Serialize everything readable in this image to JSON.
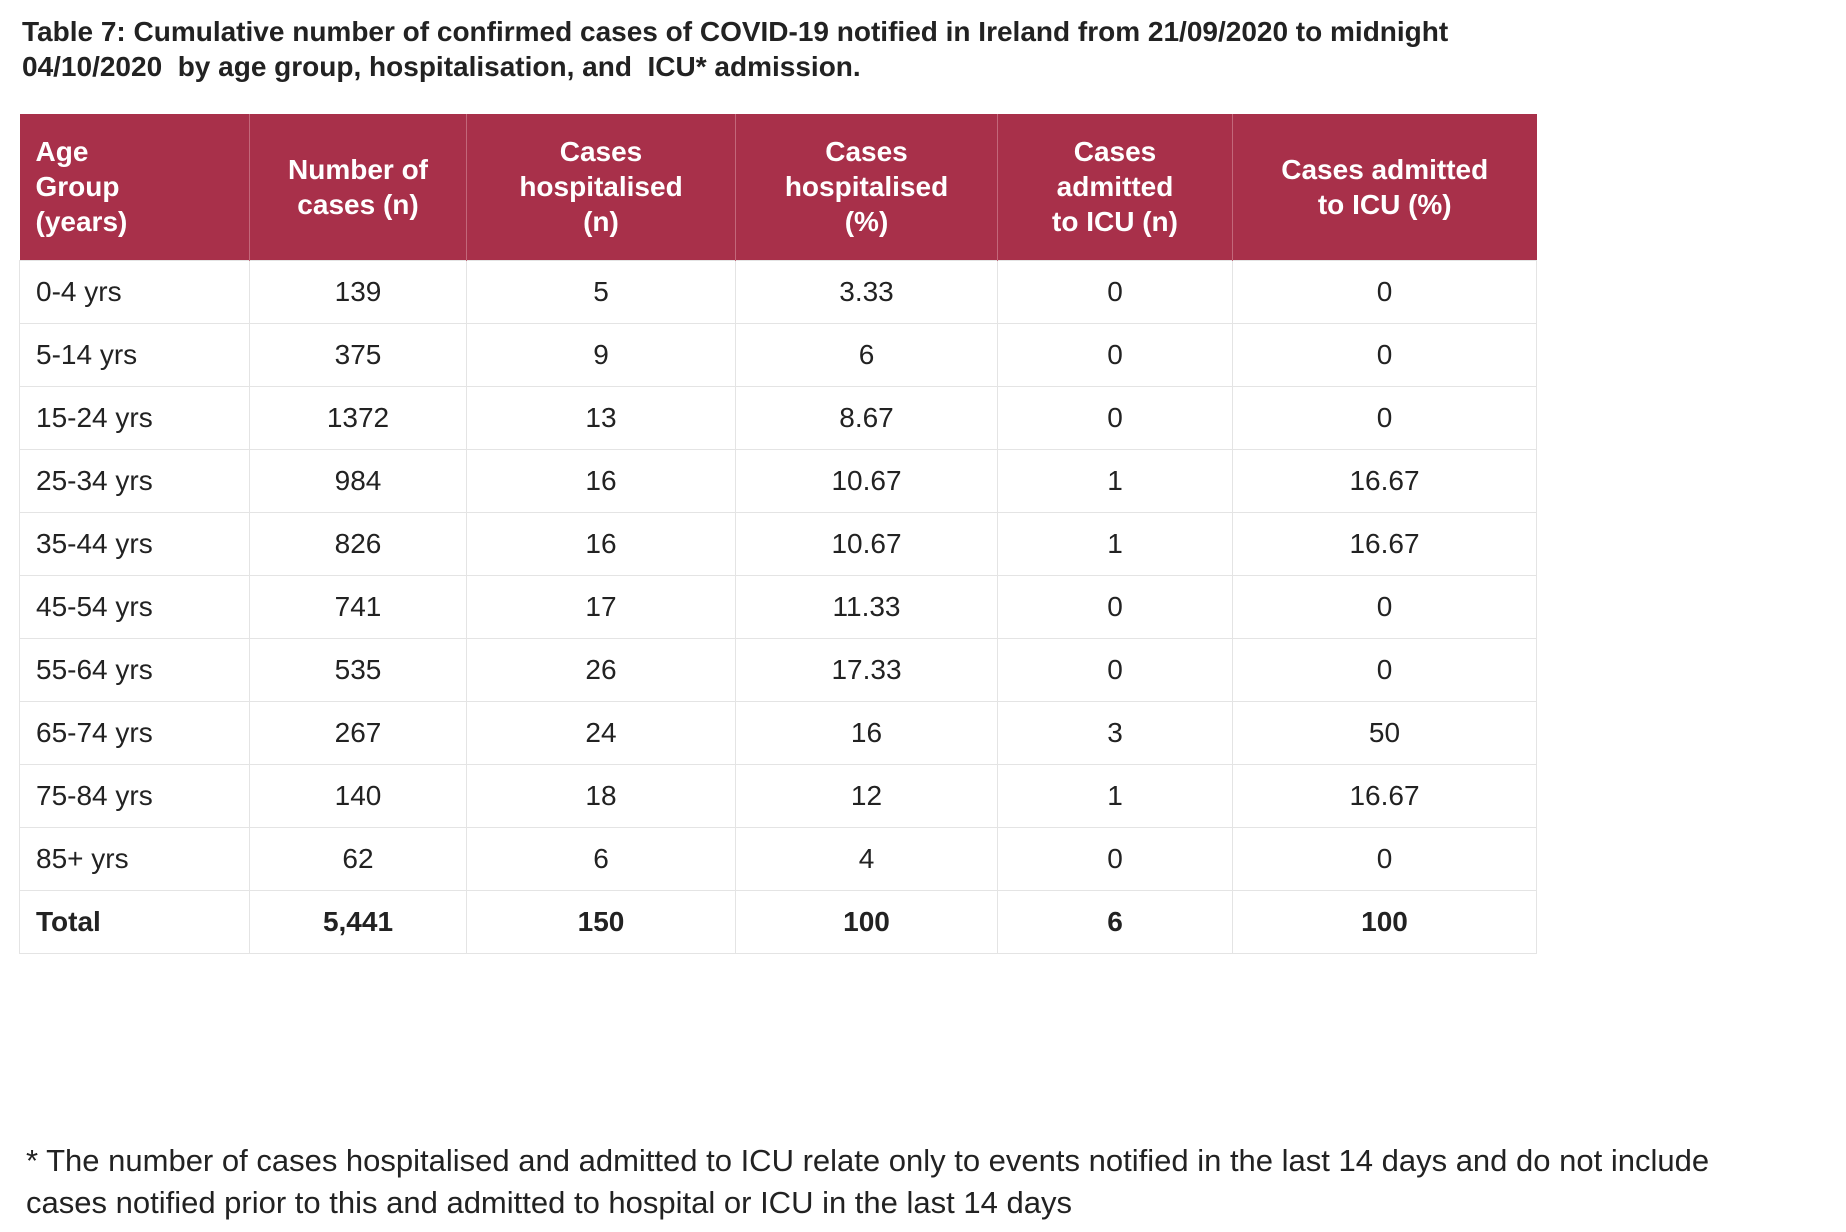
{
  "caption": {
    "line1": "Table 7: Cumulative number of confirmed cases of COVID-19 notified in Ireland from 21/09/2020 to midnight",
    "line2": "04/10/2020  by age group, hospitalisation, and  ICU* admission."
  },
  "table": {
    "headers": [
      "Age Group (years)",
      "Number of cases (n)",
      "Cases hospitalised (n)",
      "Cases hospitalised (%)",
      "Cases admitted to ICU (n)",
      "Cases admitted to ICU (%)"
    ],
    "rows": [
      [
        "0-4 yrs",
        "139",
        "5",
        "3.33",
        "0",
        "0"
      ],
      [
        "5-14 yrs",
        "375",
        "9",
        "6",
        "0",
        "0"
      ],
      [
        "15-24 yrs",
        "1372",
        "13",
        "8.67",
        "0",
        "0"
      ],
      [
        "25-34 yrs",
        "984",
        "16",
        "10.67",
        "1",
        "16.67"
      ],
      [
        "35-44 yrs",
        "826",
        "16",
        "10.67",
        "1",
        "16.67"
      ],
      [
        "45-54 yrs",
        "741",
        "17",
        "11.33",
        "0",
        "0"
      ],
      [
        "55-64 yrs",
        "535",
        "26",
        "17.33",
        "0",
        "0"
      ],
      [
        "65-74 yrs",
        "267",
        "24",
        "16",
        "3",
        "50"
      ],
      [
        "75-84 yrs",
        "140",
        "18",
        "12",
        "1",
        "16.67"
      ],
      [
        "85+ yrs",
        "62",
        "6",
        "4",
        "0",
        "0"
      ],
      [
        "Total",
        "5,441",
        "150",
        "100",
        "6",
        "100"
      ]
    ]
  },
  "footnote": {
    "line1": "* The number of cases hospitalised and admitted to ICU relate only to events notified in the last 14 days and do not include",
    "line2": "cases notified prior to this and admitted to hospital or ICU in the last 14 days"
  },
  "colors": {
    "header_background": "#a8304a",
    "header_text": "#ffffff",
    "grid_line": "#e4e4e4"
  }
}
